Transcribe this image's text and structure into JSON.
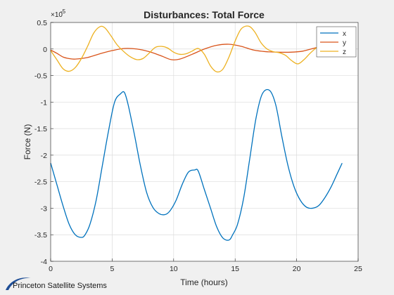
{
  "branding": {
    "name": "Princeton Satellite Systems"
  },
  "chart_data": {
    "type": "line",
    "title": "Disturbances: Total Force",
    "xlabel": "Time (hours)",
    "ylabel": "Force (N)",
    "exponent_label": "×10",
    "exponent_value": "-5",
    "xlim": [
      0,
      25
    ],
    "ylim": [
      -4,
      0.5
    ],
    "xticks": [
      0,
      5,
      10,
      15,
      20,
      25
    ],
    "yticks": [
      -4,
      -3.5,
      -3,
      -2.5,
      -2,
      -1.5,
      -1,
      -0.5,
      0,
      0.5
    ],
    "xtick_labels": [
      "0",
      "5",
      "10",
      "15",
      "20",
      "25"
    ],
    "ytick_labels": [
      "-4",
      "-3.5",
      "-3",
      "-2.5",
      "-2",
      "-1.5",
      "-1",
      "-0.5",
      "0",
      "0.5"
    ],
    "grid": true,
    "legend_position": "top-right",
    "series": [
      {
        "name": "x",
        "color": "#0072bd",
        "x": [
          0,
          0.5,
          1,
          1.5,
          2,
          2.5,
          2.8,
          3.2,
          3.7,
          4.2,
          4.7,
          5.2,
          5.7,
          6.0,
          6.3,
          6.8,
          7.3,
          7.8,
          8.3,
          8.8,
          9.3,
          9.7,
          10.2,
          10.7,
          11.2,
          11.7,
          12.0,
          12.5,
          13.0,
          13.5,
          14.0,
          14.5,
          14.8,
          15.2,
          15.7,
          16.2,
          16.7,
          17.2,
          17.8,
          18.3,
          18.8,
          19.3,
          19.8,
          20.3,
          20.8,
          21.3,
          21.8,
          22.3,
          22.8,
          23.3,
          23.7
        ],
        "values": [
          -2.15,
          -2.55,
          -2.95,
          -3.3,
          -3.5,
          -3.55,
          -3.5,
          -3.3,
          -2.85,
          -2.2,
          -1.55,
          -1.0,
          -0.84,
          -0.82,
          -1.05,
          -1.6,
          -2.2,
          -2.7,
          -2.98,
          -3.1,
          -3.12,
          -3.05,
          -2.85,
          -2.55,
          -2.32,
          -2.28,
          -2.3,
          -2.65,
          -3.0,
          -3.35,
          -3.56,
          -3.6,
          -3.5,
          -3.3,
          -2.8,
          -2.05,
          -1.3,
          -0.85,
          -0.78,
          -1.05,
          -1.65,
          -2.2,
          -2.6,
          -2.85,
          -2.98,
          -3.0,
          -2.95,
          -2.8,
          -2.6,
          -2.35,
          -2.15
        ]
      },
      {
        "name": "y",
        "color": "#d95319",
        "x": [
          0,
          0.5,
          1,
          1.5,
          2,
          3,
          4,
          5,
          6,
          7,
          8,
          9,
          9.8,
          10.5,
          11.5,
          12.5,
          13.5,
          14.5,
          15.5,
          16.5,
          17.5,
          18.5,
          19.5,
          20.5,
          21.5,
          22.5,
          23.0,
          23.7
        ],
        "values": [
          -0.02,
          -0.08,
          -0.15,
          -0.18,
          -0.19,
          -0.16,
          -0.09,
          -0.03,
          0.01,
          0.0,
          -0.05,
          -0.13,
          -0.2,
          -0.19,
          -0.1,
          0.0,
          0.07,
          0.09,
          0.05,
          -0.02,
          -0.05,
          -0.06,
          -0.06,
          -0.04,
          0.02,
          0.07,
          0.08,
          0.07
        ]
      },
      {
        "name": "z",
        "color": "#edb120",
        "x": [
          0,
          0.5,
          1,
          1.5,
          2,
          2.5,
          3,
          3.5,
          4,
          4.4,
          4.9,
          5.4,
          6,
          6.5,
          7,
          7.5,
          8,
          8.5,
          9,
          9.5,
          10,
          10.5,
          11,
          11.5,
          12,
          12.5,
          13,
          13.5,
          14,
          14.5,
          15,
          15.5,
          16.1,
          16.6,
          17.1,
          17.6,
          18.1,
          18.6,
          19.1,
          19.6,
          20.1,
          20.6,
          21.1,
          21.6,
          22.1,
          22.6,
          23.1,
          23.7
        ],
        "values": [
          -0.03,
          -0.2,
          -0.37,
          -0.42,
          -0.35,
          -0.18,
          0.05,
          0.3,
          0.42,
          0.4,
          0.25,
          0.08,
          -0.06,
          -0.15,
          -0.2,
          -0.18,
          -0.08,
          0.03,
          0.05,
          0.02,
          -0.06,
          -0.1,
          -0.09,
          -0.04,
          0.01,
          -0.1,
          -0.32,
          -0.43,
          -0.38,
          -0.15,
          0.15,
          0.38,
          0.43,
          0.32,
          0.12,
          0.0,
          -0.05,
          -0.07,
          -0.12,
          -0.22,
          -0.28,
          -0.2,
          -0.08,
          0.02,
          0.08,
          0.1,
          0.05,
          -0.02
        ]
      }
    ]
  }
}
